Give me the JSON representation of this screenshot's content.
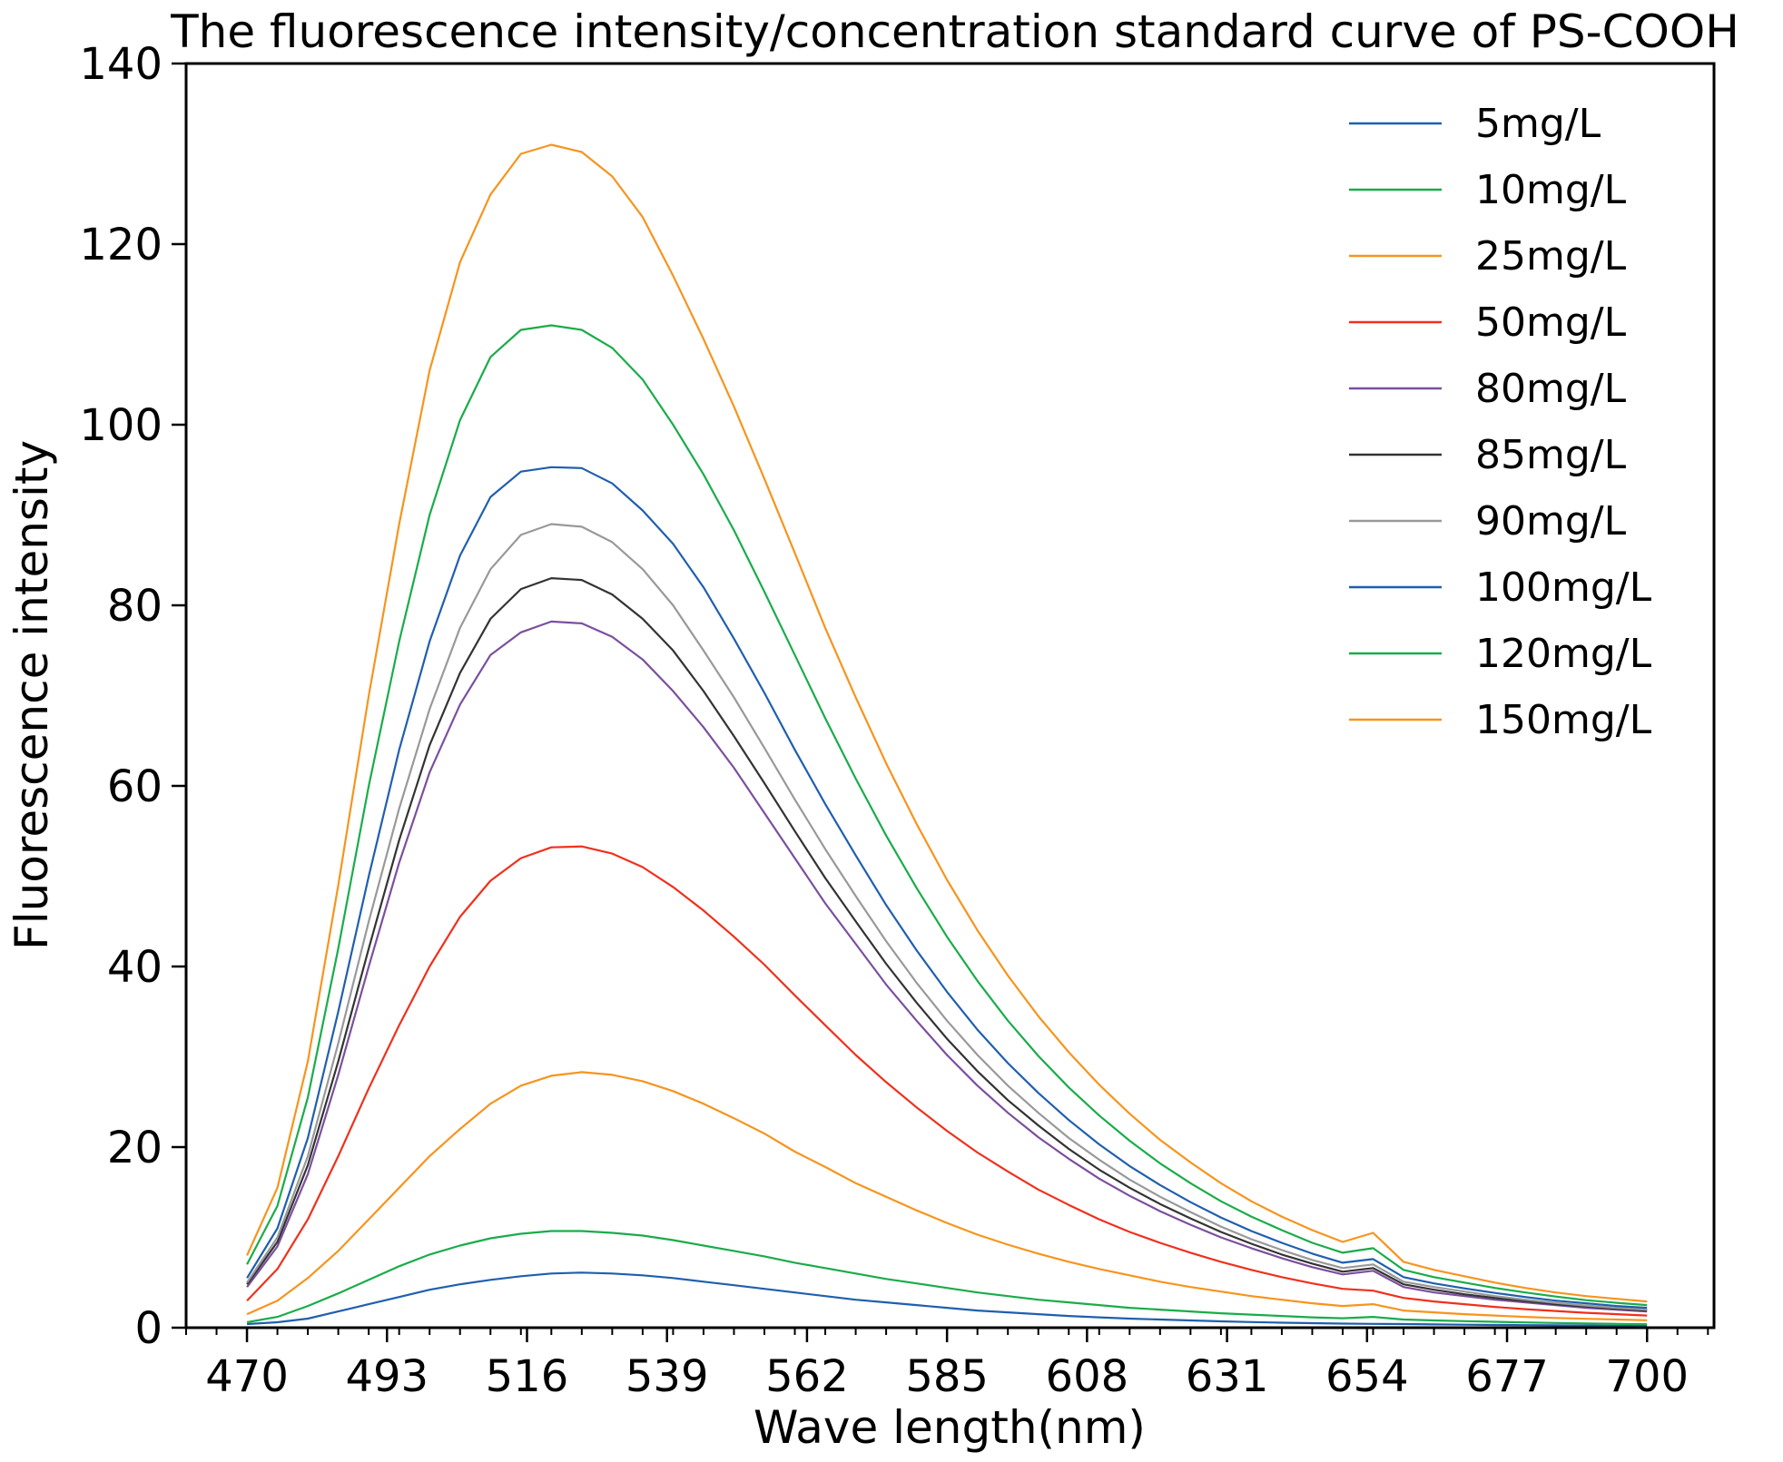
{
  "chart_data": {
    "type": "line",
    "title": "The fluorescence intensity/concentration standard curve of PS-COOH",
    "xlabel": "Wave length(nm)",
    "ylabel": "Fluorescence intensity",
    "xlim": [
      460,
      711
    ],
    "ylim": [
      0,
      140
    ],
    "xticks": [
      470,
      493,
      516,
      539,
      562,
      585,
      608,
      631,
      654,
      677,
      700
    ],
    "yticks": [
      0,
      20,
      40,
      60,
      80,
      100,
      120,
      140
    ],
    "x_minor_step": 5,
    "grid": false,
    "legend_position": "top-right",
    "x": [
      470,
      475,
      480,
      485,
      490,
      495,
      500,
      505,
      510,
      515,
      520,
      525,
      530,
      535,
      540,
      545,
      550,
      555,
      560,
      565,
      570,
      575,
      580,
      585,
      590,
      595,
      600,
      605,
      610,
      615,
      620,
      625,
      630,
      635,
      640,
      645,
      650,
      655,
      660,
      665,
      670,
      675,
      680,
      685,
      690,
      695,
      700
    ],
    "series": [
      {
        "name": "5mg/L",
        "color": "#1f5fae",
        "values": [
          0.4,
          0.6,
          1.0,
          1.8,
          2.6,
          3.4,
          4.2,
          4.8,
          5.3,
          5.7,
          6.0,
          6.1,
          6.0,
          5.8,
          5.5,
          5.1,
          4.7,
          4.3,
          3.9,
          3.5,
          3.1,
          2.8,
          2.5,
          2.2,
          1.9,
          1.7,
          1.5,
          1.3,
          1.15,
          1.0,
          0.9,
          0.8,
          0.7,
          0.62,
          0.55,
          0.5,
          0.45,
          0.42,
          0.4,
          0.36,
          0.33,
          0.3,
          0.28,
          0.26,
          0.24,
          0.22,
          0.2
        ]
      },
      {
        "name": "10mg/L",
        "color": "#1aac4a",
        "values": [
          0.6,
          1.2,
          2.4,
          3.8,
          5.3,
          6.8,
          8.1,
          9.1,
          9.9,
          10.4,
          10.7,
          10.7,
          10.5,
          10.2,
          9.7,
          9.1,
          8.5,
          7.9,
          7.2,
          6.6,
          6.0,
          5.4,
          4.9,
          4.4,
          3.9,
          3.5,
          3.1,
          2.8,
          2.5,
          2.2,
          2.0,
          1.8,
          1.6,
          1.45,
          1.3,
          1.15,
          1.05,
          1.2,
          0.9,
          0.8,
          0.72,
          0.65,
          0.58,
          0.52,
          0.47,
          0.42,
          0.38
        ]
      },
      {
        "name": "25mg/L",
        "color": "#f7941d",
        "values": [
          1.5,
          3.0,
          5.5,
          8.5,
          12.0,
          15.5,
          19.0,
          22.0,
          24.8,
          26.8,
          27.9,
          28.3,
          28.0,
          27.3,
          26.2,
          24.8,
          23.2,
          21.5,
          19.5,
          17.8,
          16.0,
          14.5,
          13.0,
          11.6,
          10.3,
          9.2,
          8.2,
          7.3,
          6.5,
          5.8,
          5.1,
          4.5,
          4.0,
          3.5,
          3.1,
          2.7,
          2.4,
          2.6,
          1.9,
          1.7,
          1.5,
          1.35,
          1.2,
          1.08,
          0.98,
          0.9,
          0.82
        ]
      },
      {
        "name": "50mg/L",
        "color": "#f0301c",
        "values": [
          3.0,
          6.5,
          12.0,
          19.0,
          26.5,
          33.5,
          40.0,
          45.5,
          49.5,
          52.0,
          53.2,
          53.3,
          52.5,
          51.0,
          48.8,
          46.2,
          43.3,
          40.2,
          36.8,
          33.5,
          30.2,
          27.2,
          24.4,
          21.8,
          19.4,
          17.3,
          15.3,
          13.6,
          12.0,
          10.6,
          9.4,
          8.3,
          7.3,
          6.4,
          5.6,
          4.9,
          4.3,
          4.1,
          3.3,
          2.9,
          2.6,
          2.3,
          2.05,
          1.85,
          1.65,
          1.5,
          1.35
        ]
      },
      {
        "name": "80mg/L",
        "color": "#7b4f9e",
        "values": [
          4.5,
          9.0,
          17.0,
          28.0,
          40.0,
          51.5,
          61.5,
          69.0,
          74.5,
          77.0,
          78.2,
          78.0,
          76.5,
          74.0,
          70.5,
          66.5,
          62.0,
          57.0,
          52.0,
          47.0,
          42.5,
          38.0,
          34.0,
          30.2,
          26.8,
          23.8,
          21.1,
          18.7,
          16.5,
          14.6,
          12.9,
          11.4,
          10.0,
          8.8,
          7.7,
          6.7,
          5.9,
          6.3,
          4.5,
          3.9,
          3.5,
          3.1,
          2.8,
          2.5,
          2.2,
          2.0,
          1.8
        ]
      },
      {
        "name": "85mg/L",
        "color": "#333333",
        "values": [
          4.8,
          9.5,
          18.0,
          29.5,
          42.0,
          54.0,
          64.5,
          72.5,
          78.5,
          81.8,
          83.0,
          82.8,
          81.2,
          78.5,
          75.0,
          70.5,
          65.5,
          60.3,
          55.0,
          49.8,
          45.0,
          40.3,
          36.0,
          32.0,
          28.4,
          25.2,
          22.4,
          19.8,
          17.5,
          15.5,
          13.7,
          12.1,
          10.6,
          9.3,
          8.1,
          7.1,
          6.2,
          6.6,
          4.8,
          4.2,
          3.7,
          3.3,
          2.95,
          2.6,
          2.35,
          2.1,
          1.9
        ]
      },
      {
        "name": "90mg/L",
        "color": "#999999",
        "values": [
          5.0,
          10.0,
          19.0,
          31.5,
          45.0,
          57.5,
          68.5,
          77.5,
          84.0,
          87.8,
          89.0,
          88.7,
          87.0,
          84.0,
          80.0,
          75.0,
          69.8,
          64.2,
          58.5,
          53.0,
          47.8,
          42.8,
          38.2,
          34.0,
          30.2,
          26.8,
          23.8,
          21.0,
          18.6,
          16.4,
          14.5,
          12.8,
          11.2,
          9.8,
          8.6,
          7.5,
          6.6,
          7.0,
          5.1,
          4.5,
          4.0,
          3.5,
          3.1,
          2.75,
          2.45,
          2.2,
          2.0
        ]
      },
      {
        "name": "100mg/L",
        "color": "#1f5fae",
        "values": [
          5.5,
          11.0,
          21.0,
          35.0,
          50.0,
          64.0,
          76.0,
          85.5,
          92.0,
          94.8,
          95.3,
          95.2,
          93.5,
          90.5,
          86.8,
          82.0,
          76.3,
          70.3,
          64.0,
          58.0,
          52.3,
          46.8,
          41.8,
          37.2,
          33.0,
          29.3,
          26.0,
          23.0,
          20.3,
          17.9,
          15.8,
          13.9,
          12.2,
          10.7,
          9.4,
          8.2,
          7.2,
          7.6,
          5.6,
          4.9,
          4.35,
          3.85,
          3.4,
          3.0,
          2.7,
          2.4,
          2.2
        ]
      },
      {
        "name": "120mg/L",
        "color": "#1aac4a",
        "values": [
          7.0,
          13.5,
          25.5,
          42.0,
          60.0,
          76.0,
          90.0,
          100.5,
          107.5,
          110.5,
          111.0,
          110.5,
          108.5,
          105.0,
          100.0,
          94.5,
          88.3,
          81.5,
          74.5,
          67.5,
          60.8,
          54.5,
          48.7,
          43.3,
          38.4,
          34.0,
          30.1,
          26.6,
          23.5,
          20.7,
          18.2,
          16.0,
          14.0,
          12.3,
          10.8,
          9.4,
          8.3,
          8.8,
          6.4,
          5.6,
          5.0,
          4.4,
          3.9,
          3.45,
          3.05,
          2.75,
          2.5
        ]
      },
      {
        "name": "150mg/L",
        "color": "#f7941d",
        "values": [
          8.0,
          15.5,
          29.5,
          49.0,
          70.0,
          89.0,
          106.0,
          118.0,
          125.5,
          130.0,
          131.0,
          130.2,
          127.5,
          123.0,
          116.5,
          109.5,
          102.0,
          94.0,
          85.8,
          77.5,
          69.8,
          62.5,
          55.8,
          49.6,
          44.0,
          39.0,
          34.5,
          30.5,
          26.9,
          23.7,
          20.8,
          18.3,
          16.0,
          14.0,
          12.3,
          10.8,
          9.5,
          10.5,
          7.3,
          6.4,
          5.7,
          5.0,
          4.4,
          3.9,
          3.5,
          3.2,
          2.9
        ]
      }
    ]
  }
}
